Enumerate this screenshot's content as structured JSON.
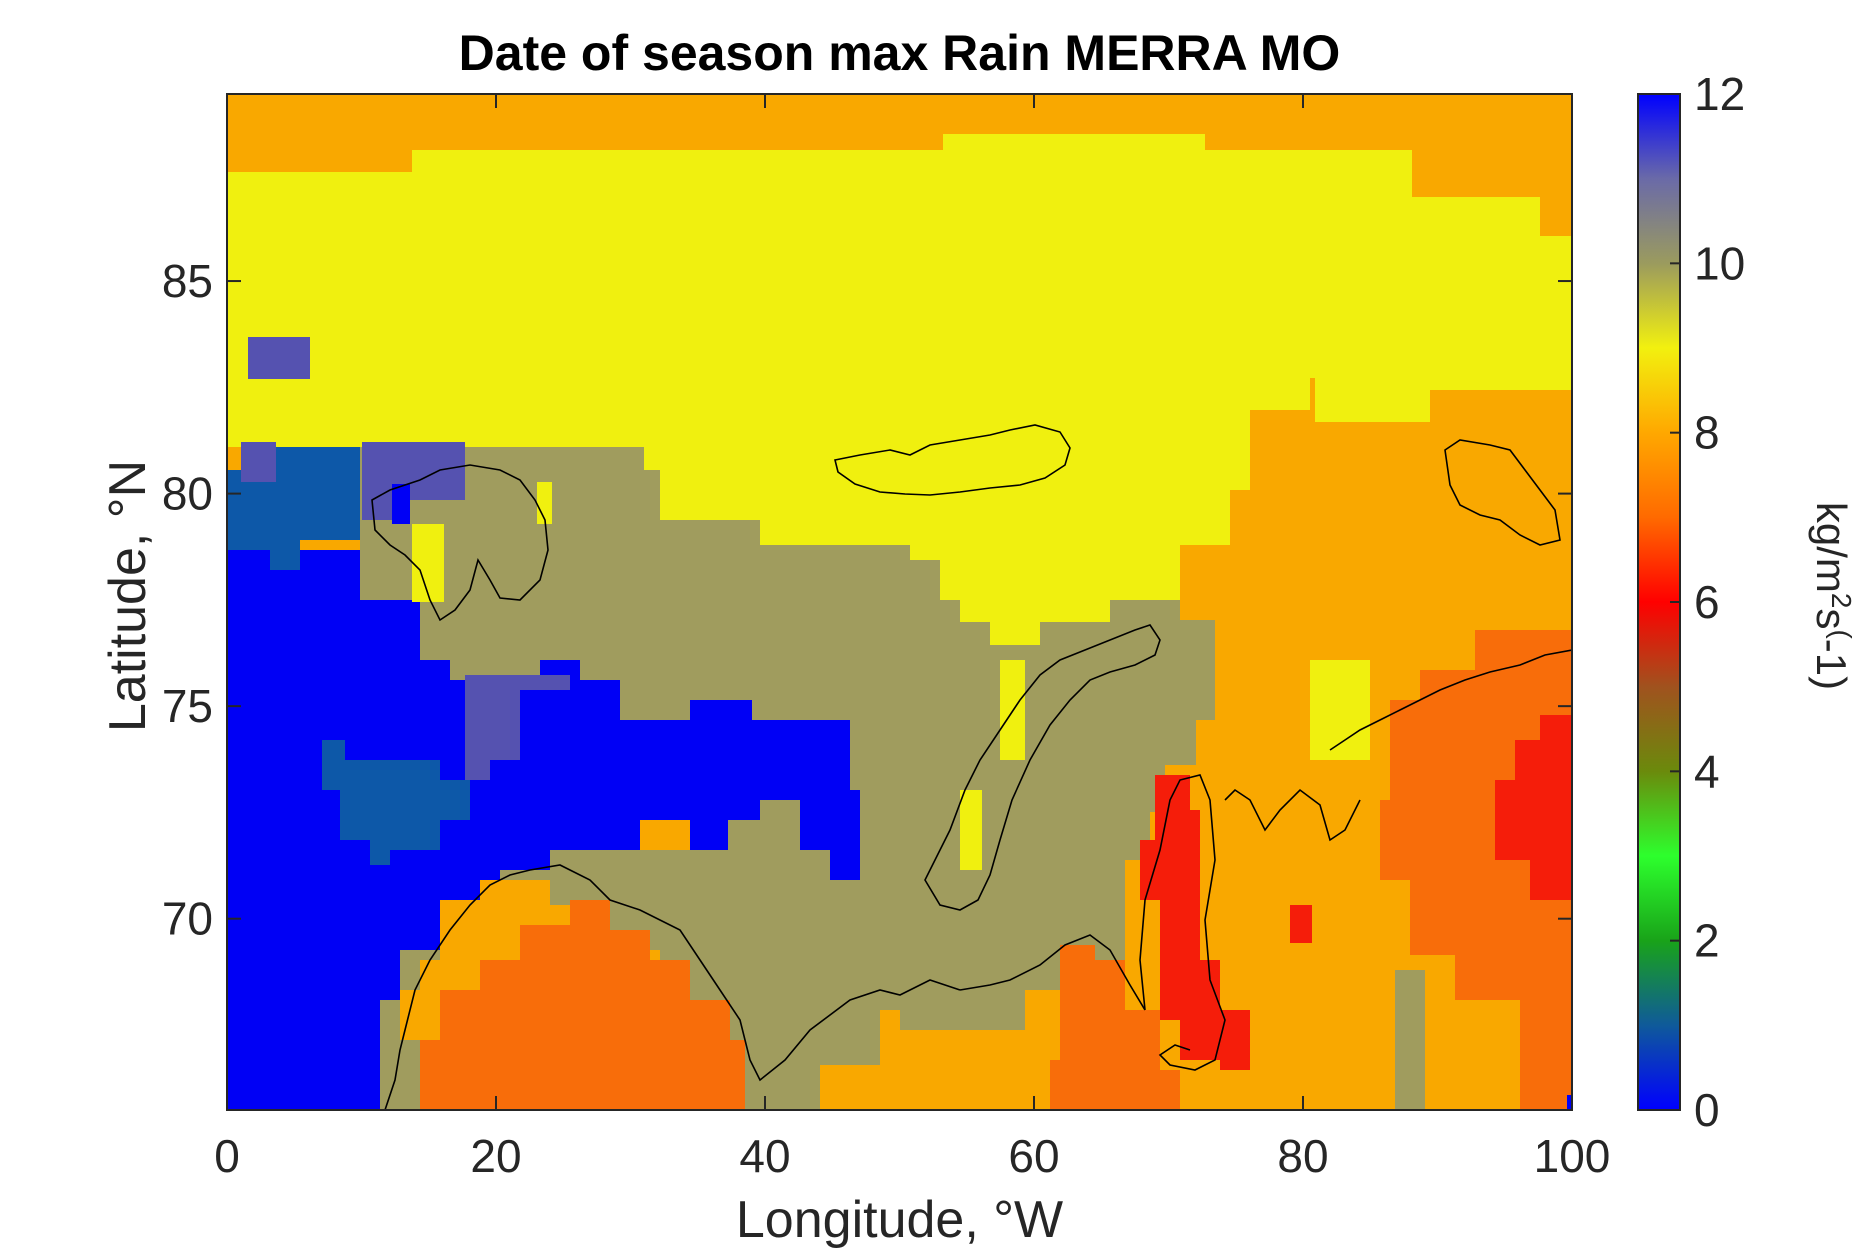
{
  "chart_data": {
    "type": "heatmap",
    "title": "Date of season max Rain MERRA MO",
    "xlabel": "Longitude, °W",
    "ylabel": "Latitude, °N",
    "xlim": [
      0,
      100
    ],
    "ylim": [
      65.5,
      89.4
    ],
    "xticks": [
      "0",
      "20",
      "40",
      "60",
      "80",
      "100"
    ],
    "yticks": [
      "70",
      "75",
      "80",
      "85"
    ],
    "colorbar": {
      "label_base": "kg/m",
      "label_sup1": "2",
      "label_mid": "s",
      "label_sup2": "(",
      "label_end": "-1)",
      "range": [
        0,
        12
      ],
      "ticks": [
        "0",
        "2",
        "4",
        "6",
        "8",
        "10",
        "12"
      ],
      "colormap": [
        "#0000ff",
        "#0f5a9a",
        "#19a319",
        "#2dff2d",
        "#6b8a0c",
        "#a0521e",
        "#ff0000",
        "#ff6a00",
        "#ffa800",
        "#f2f00f",
        "#9b9b5e",
        "#6a6aa8",
        "#0000ff"
      ]
    },
    "grid": false,
    "regions": [
      {
        "name": "north-edge-orange",
        "value": 8.3,
        "color": "#f9a800"
      },
      {
        "name": "central-arctic-yellow",
        "value": 9.0,
        "color": "#f0f00f"
      },
      {
        "name": "svalbard-barents-olive",
        "value": 10.0,
        "color": "#a09c5e"
      },
      {
        "name": "greenland-sea-blue",
        "value": 12.0,
        "color": "#0000f5"
      },
      {
        "name": "fram-strait-steel",
        "value": 0.8,
        "color": "#0d58a8"
      },
      {
        "name": "slate-patches",
        "value": 11.0,
        "color": "#5552b0"
      },
      {
        "name": "scandinavia-orange",
        "value": 7.2,
        "color": "#f86d0a"
      },
      {
        "name": "siberia-orange",
        "value": 7.8,
        "color": "#f89a0a"
      },
      {
        "name": "novaya-zemlya-red",
        "value": 6.2,
        "color": "#f51d0a"
      }
    ]
  }
}
